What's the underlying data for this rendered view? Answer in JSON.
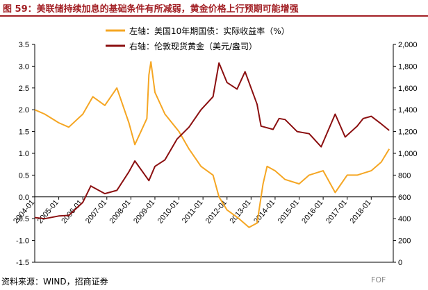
{
  "header": {
    "title": "图 59：美联储持续加息的基础条件有所减弱，黄金价格上行预期可能增强"
  },
  "footer": {
    "source": "资料来源：WIND，招商证券",
    "watermark": "FOF"
  },
  "colors": {
    "title": "#a21f24",
    "series_left": "#f5a623",
    "series_right": "#8b0f10",
    "axis": "#000000"
  },
  "chart_data": {
    "type": "line",
    "xlabel": "",
    "x_ticks": [
      "2005-01",
      "2006-01",
      "2007-01",
      "2008-01",
      "2009-01",
      "2010-01",
      "2011-01",
      "2012-01",
      "2013-01",
      "2014-01",
      "2015-01",
      "2016-01",
      "2017-01",
      "2018-01"
    ],
    "x_ticks_display": [
      "2004-01",
      "2005-01",
      "2006-01",
      "2007-01",
      "2008-01",
      "2009-01",
      "2010-01",
      "2011-01",
      "2012-01",
      "2013-01",
      "2014-01",
      "2015-01",
      "2016-01",
      "2017-01",
      "2018-01"
    ],
    "x_range": [
      "2004-01",
      "2018-12"
    ],
    "left_axis": {
      "ylim": [
        -1.5,
        3.5
      ],
      "ticks": [
        "-1.5",
        "-1.0",
        "-0.5",
        "0.0",
        "0.5",
        "1.0",
        "1.5",
        "2.0",
        "2.5",
        "3.0",
        "3.5"
      ]
    },
    "right_axis": {
      "ylim": [
        0,
        2000
      ],
      "ticks": [
        "0",
        "200",
        "400",
        "600",
        "800",
        "1,000",
        "1,200",
        "1,400",
        "1,600",
        "1,800",
        "2,000"
      ]
    },
    "legend_position": "top-center",
    "series": [
      {
        "name": "左轴：美国10年期国债：实际收益率（%）",
        "axis": "left",
        "color": "#f5a623",
        "x": [
          "2004-01",
          "2004-06",
          "2005-01",
          "2005-06",
          "2006-01",
          "2006-06",
          "2006-12",
          "2007-06",
          "2007-12",
          "2008-03",
          "2008-06",
          "2008-09",
          "2008-10",
          "2008-11",
          "2009-01",
          "2009-06",
          "2010-01",
          "2010-06",
          "2010-12",
          "2011-06",
          "2011-09",
          "2012-01",
          "2012-07",
          "2012-12",
          "2013-04",
          "2013-07",
          "2013-09",
          "2014-01",
          "2014-06",
          "2015-01",
          "2015-06",
          "2016-01",
          "2016-07",
          "2017-01",
          "2017-06",
          "2018-01",
          "2018-06",
          "2018-10"
        ],
        "values": [
          2.0,
          1.9,
          1.7,
          1.6,
          1.9,
          2.3,
          2.1,
          2.5,
          1.7,
          1.2,
          1.5,
          1.8,
          2.8,
          3.1,
          2.4,
          1.9,
          1.5,
          1.1,
          0.7,
          0.5,
          0.0,
          -0.3,
          -0.5,
          -0.7,
          -0.6,
          0.3,
          0.7,
          0.6,
          0.4,
          0.3,
          0.5,
          0.6,
          0.1,
          0.5,
          0.5,
          0.6,
          0.8,
          1.1
        ]
      },
      {
        "name": "右轴：伦敦现货黄金（美元/盎司）",
        "axis": "right",
        "color": "#8b0f10",
        "x": [
          "2004-01",
          "2004-06",
          "2005-01",
          "2005-06",
          "2006-01",
          "2006-05",
          "2006-12",
          "2007-06",
          "2007-12",
          "2008-03",
          "2008-10",
          "2009-01",
          "2009-06",
          "2009-12",
          "2010-06",
          "2010-12",
          "2011-06",
          "2011-09",
          "2012-01",
          "2012-06",
          "2012-10",
          "2013-04",
          "2013-06",
          "2013-12",
          "2014-03",
          "2014-06",
          "2014-12",
          "2015-06",
          "2015-12",
          "2016-07",
          "2016-12",
          "2017-06",
          "2017-09",
          "2018-01",
          "2018-06",
          "2018-10"
        ],
        "values": [
          410,
          400,
          425,
          430,
          550,
          700,
          630,
          660,
          830,
          930,
          750,
          880,
          940,
          1130,
          1240,
          1400,
          1520,
          1830,
          1650,
          1590,
          1750,
          1450,
          1250,
          1220,
          1320,
          1310,
          1200,
          1180,
          1060,
          1360,
          1150,
          1250,
          1320,
          1340,
          1270,
          1210
        ]
      }
    ]
  }
}
